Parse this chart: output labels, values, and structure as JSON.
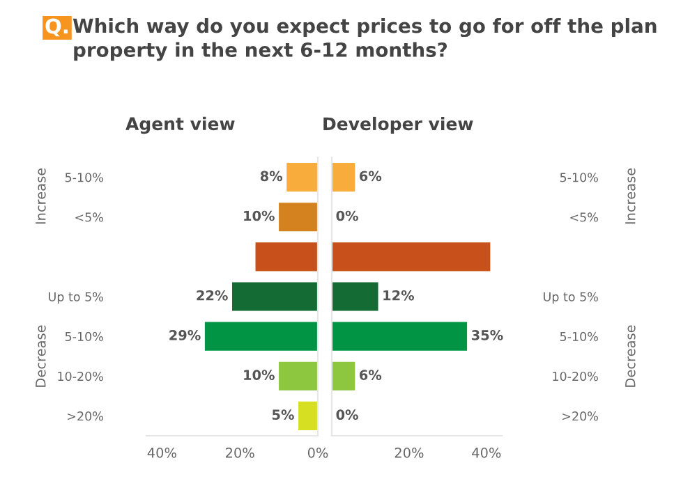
{
  "chart_data": [
    {
      "type": "bar",
      "orientation": "horizontal",
      "title": "Q. Which way do you expect prices to go for off the plan property in the next 6-12 months?",
      "subtitle": "Agent view",
      "categories": [
        "5-10%",
        "<5%",
        null,
        "Up to 5%",
        "5-10%",
        "10-20%",
        ">20%"
      ],
      "values": [
        8,
        10,
        16,
        22,
        29,
        10,
        5
      ],
      "value_labels": [
        "8%",
        "10%",
        null,
        "22%",
        "29%",
        "10%",
        "5%"
      ],
      "colors": [
        "#f7ac3b",
        "#d4821f",
        "#c8501a",
        "#146b34",
        "#009444",
        "#8dc63f",
        "#d7df23"
      ],
      "xlim": [
        44,
        0
      ],
      "xticks": [
        {
          "value": 40,
          "label": "40%"
        },
        {
          "value": 20,
          "label": "20%"
        },
        {
          "value": 0,
          "label": "0%"
        }
      ],
      "annotations": [
        "Increase",
        "Decrease"
      ]
    },
    {
      "type": "bar",
      "orientation": "horizontal",
      "subtitle": "Developer view",
      "categories": [
        "5-10%",
        "<5%",
        null,
        "Up to 5%",
        "5-10%",
        "10-20%",
        ">20%"
      ],
      "values": [
        6,
        0,
        41,
        12,
        35,
        6,
        0
      ],
      "value_labels": [
        "6%",
        "0%",
        null,
        "12%",
        "35%",
        "6%",
        "0%"
      ],
      "colors": [
        "#f7ac3b",
        "#d4821f",
        "#c8501a",
        "#146b34",
        "#009444",
        "#8dc63f",
        "#d7df23"
      ],
      "xlim": [
        0,
        44
      ],
      "xticks": [
        {
          "value": 0,
          "label": null
        },
        {
          "value": 20,
          "label": "20%"
        },
        {
          "value": 40,
          "label": "40%"
        }
      ],
      "annotations": [
        "Increase",
        "Decrease"
      ]
    }
  ]
}
